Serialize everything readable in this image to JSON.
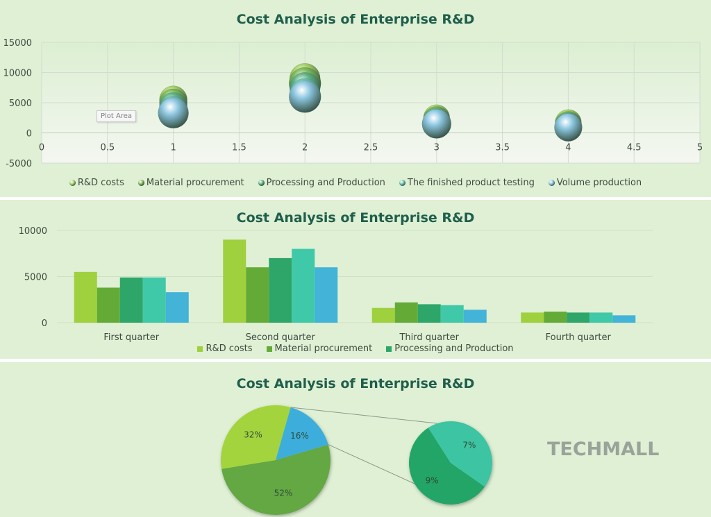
{
  "chart_data": [
    {
      "type": "scatter",
      "title": "Cost Analysis of Enterprise R&D",
      "xlim": [
        0,
        5
      ],
      "ylim": [
        -5000,
        15000
      ],
      "x_ticks": [
        "0",
        "0.5",
        "1",
        "1.5",
        "2",
        "2.5",
        "3",
        "3.5",
        "4",
        "4.5",
        "5"
      ],
      "y_ticks": [
        "15000",
        "10000",
        "5000",
        "0",
        "-5000"
      ],
      "grid": true,
      "legend_position": "bottom",
      "tooltip": "Plot Area",
      "series": [
        {
          "name": "R&D costs",
          "color": "#a7d36a",
          "points": [
            [
              1,
              5500
            ],
            [
              2,
              9000
            ],
            [
              3,
              2500
            ],
            [
              4,
              1700
            ]
          ]
        },
        {
          "name": "Material procurement",
          "color": "#7fb85a",
          "points": [
            [
              1,
              5000
            ],
            [
              2,
              8200
            ],
            [
              3,
              2200
            ],
            [
              4,
              1400
            ]
          ]
        },
        {
          "name": "Processing and Production",
          "color": "#5fb384",
          "points": [
            [
              1,
              4400
            ],
            [
              2,
              7500
            ],
            [
              3,
              2000
            ],
            [
              4,
              1200
            ]
          ]
        },
        {
          "name": "The finished product testing",
          "color": "#6ac4b0",
          "points": [
            [
              1,
              3800
            ],
            [
              2,
              6500
            ],
            [
              3,
              1700
            ],
            [
              4,
              1100
            ]
          ]
        },
        {
          "name": "Volume production",
          "color": "#8cc6e0",
          "points": [
            [
              1,
              3300
            ],
            [
              2,
              6000
            ],
            [
              3,
              1500
            ],
            [
              4,
              900
            ]
          ]
        }
      ]
    },
    {
      "type": "bar",
      "title": "Cost Analysis of Enterprise R&D",
      "categories": [
        "First quarter",
        "Second quarter",
        "Third quarter",
        "Fourth quarter"
      ],
      "ylim": [
        0,
        10000
      ],
      "y_ticks": [
        "10000",
        "5000",
        "0"
      ],
      "grid": true,
      "legend_position": "bottom",
      "series": [
        {
          "name": "R&D costs",
          "color": "#9fd03e",
          "values": [
            5500,
            9000,
            1600,
            1100
          ]
        },
        {
          "name": "Material procurement",
          "color": "#63ab36",
          "values": [
            3800,
            6000,
            2200,
            1200
          ]
        },
        {
          "name": "Processing and Production",
          "color": "#2ea669",
          "values": [
            4900,
            7000,
            2000,
            1100
          ]
        },
        {
          "name": "",
          "color": "#40c9a8",
          "values": [
            4900,
            8000,
            1900,
            1100
          ]
        },
        {
          "name": "",
          "color": "#43b3d8",
          "values": [
            3300,
            6000,
            1400,
            800
          ]
        }
      ],
      "legend_items": [
        "R&D costs",
        "Material procurement",
        "Processing and Production"
      ]
    },
    {
      "type": "pie",
      "title": "Cost Analysis of Enterprise R&D",
      "subtype": "pie-of-pie",
      "main_slices": [
        {
          "label": "52%",
          "value": 52,
          "color": "#64a843"
        },
        {
          "label": "32%",
          "value": 32,
          "color": "#a4d43e"
        },
        {
          "label": "16%",
          "value": 16,
          "color": "#3eaedb"
        }
      ],
      "secondary_slices": [
        {
          "label": "9%",
          "value": 9,
          "color": "#24a566"
        },
        {
          "label": "7%",
          "value": 7,
          "color": "#3cc4a2"
        }
      ]
    }
  ],
  "watermark": "TECHMALL"
}
